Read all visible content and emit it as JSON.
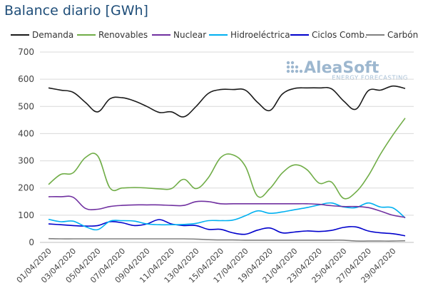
{
  "title": "Balance diario [GWh]",
  "logo": {
    "main": "AleaSoft",
    "sub": "ENERGY FORECASTING"
  },
  "chart_data": {
    "type": "line",
    "ylim": [
      0,
      700
    ],
    "yticks": [
      0,
      100,
      200,
      300,
      400,
      500,
      600,
      700
    ],
    "grid": true,
    "legend_position": "top",
    "x_tick_labels": [
      "01/04/2020",
      "03/04/2020",
      "05/04/2020",
      "07/04/2020",
      "09/04/2020",
      "11/04/2020",
      "13/04/2020",
      "15/04/2020",
      "17/04/2020",
      "19/04/2020",
      "21/04/2020",
      "23/04/2020",
      "25/04/2020",
      "27/04/2020",
      "29/04/2020"
    ],
    "x": [
      "01/04/2020",
      "02/04/2020",
      "03/04/2020",
      "04/04/2020",
      "05/04/2020",
      "06/04/2020",
      "07/04/2020",
      "08/04/2020",
      "09/04/2020",
      "10/04/2020",
      "11/04/2020",
      "12/04/2020",
      "13/04/2020",
      "14/04/2020",
      "15/04/2020",
      "16/04/2020",
      "17/04/2020",
      "18/04/2020",
      "19/04/2020",
      "20/04/2020",
      "21/04/2020",
      "22/04/2020",
      "23/04/2020",
      "24/04/2020",
      "25/04/2020",
      "26/04/2020",
      "27/04/2020",
      "28/04/2020",
      "29/04/2020",
      "30/04/2020"
    ],
    "series": [
      {
        "name": "Demanda",
        "color": "#1a1a1a",
        "values": [
          568,
          560,
          552,
          515,
          480,
          528,
          532,
          520,
          500,
          478,
          480,
          462,
          500,
          548,
          562,
          562,
          560,
          515,
          485,
          545,
          566,
          568,
          568,
          565,
          520,
          490,
          558,
          560,
          575,
          566
        ]
      },
      {
        "name": "Renovables",
        "color": "#70ad47",
        "values": [
          213,
          250,
          256,
          312,
          318,
          200,
          200,
          202,
          200,
          197,
          198,
          232,
          198,
          238,
          312,
          322,
          280,
          170,
          198,
          255,
          285,
          268,
          218,
          222,
          162,
          185,
          245,
          325,
          395,
          457
        ]
      },
      {
        "name": "Nuclear",
        "color": "#7030a0",
        "values": [
          168,
          168,
          166,
          125,
          122,
          132,
          136,
          138,
          138,
          138,
          136,
          136,
          150,
          150,
          142,
          142,
          142,
          142,
          142,
          142,
          142,
          142,
          140,
          135,
          132,
          132,
          128,
          115,
          100,
          92
        ]
      },
      {
        "name": "Hidroeléctrica",
        "color": "#00b0f0",
        "values": [
          85,
          76,
          78,
          58,
          47,
          78,
          80,
          78,
          68,
          65,
          65,
          66,
          70,
          80,
          80,
          82,
          98,
          116,
          107,
          112,
          120,
          128,
          138,
          145,
          130,
          128,
          145,
          130,
          127,
          90
        ]
      },
      {
        "name": "Ciclos Comb.",
        "color": "#0000cc",
        "values": [
          68,
          65,
          62,
          60,
          62,
          76,
          72,
          62,
          68,
          84,
          68,
          62,
          62,
          48,
          48,
          35,
          30,
          45,
          53,
          35,
          38,
          42,
          40,
          44,
          55,
          57,
          42,
          35,
          32,
          24
        ]
      },
      {
        "name": "Carbón",
        "color": "#808080",
        "values": [
          14,
          13,
          13,
          13,
          13,
          13,
          13,
          13,
          13,
          13,
          13,
          13,
          12,
          10,
          9,
          9,
          8,
          8,
          8,
          8,
          8,
          8,
          8,
          8,
          8,
          5,
          5,
          5,
          5,
          6
        ]
      }
    ]
  }
}
